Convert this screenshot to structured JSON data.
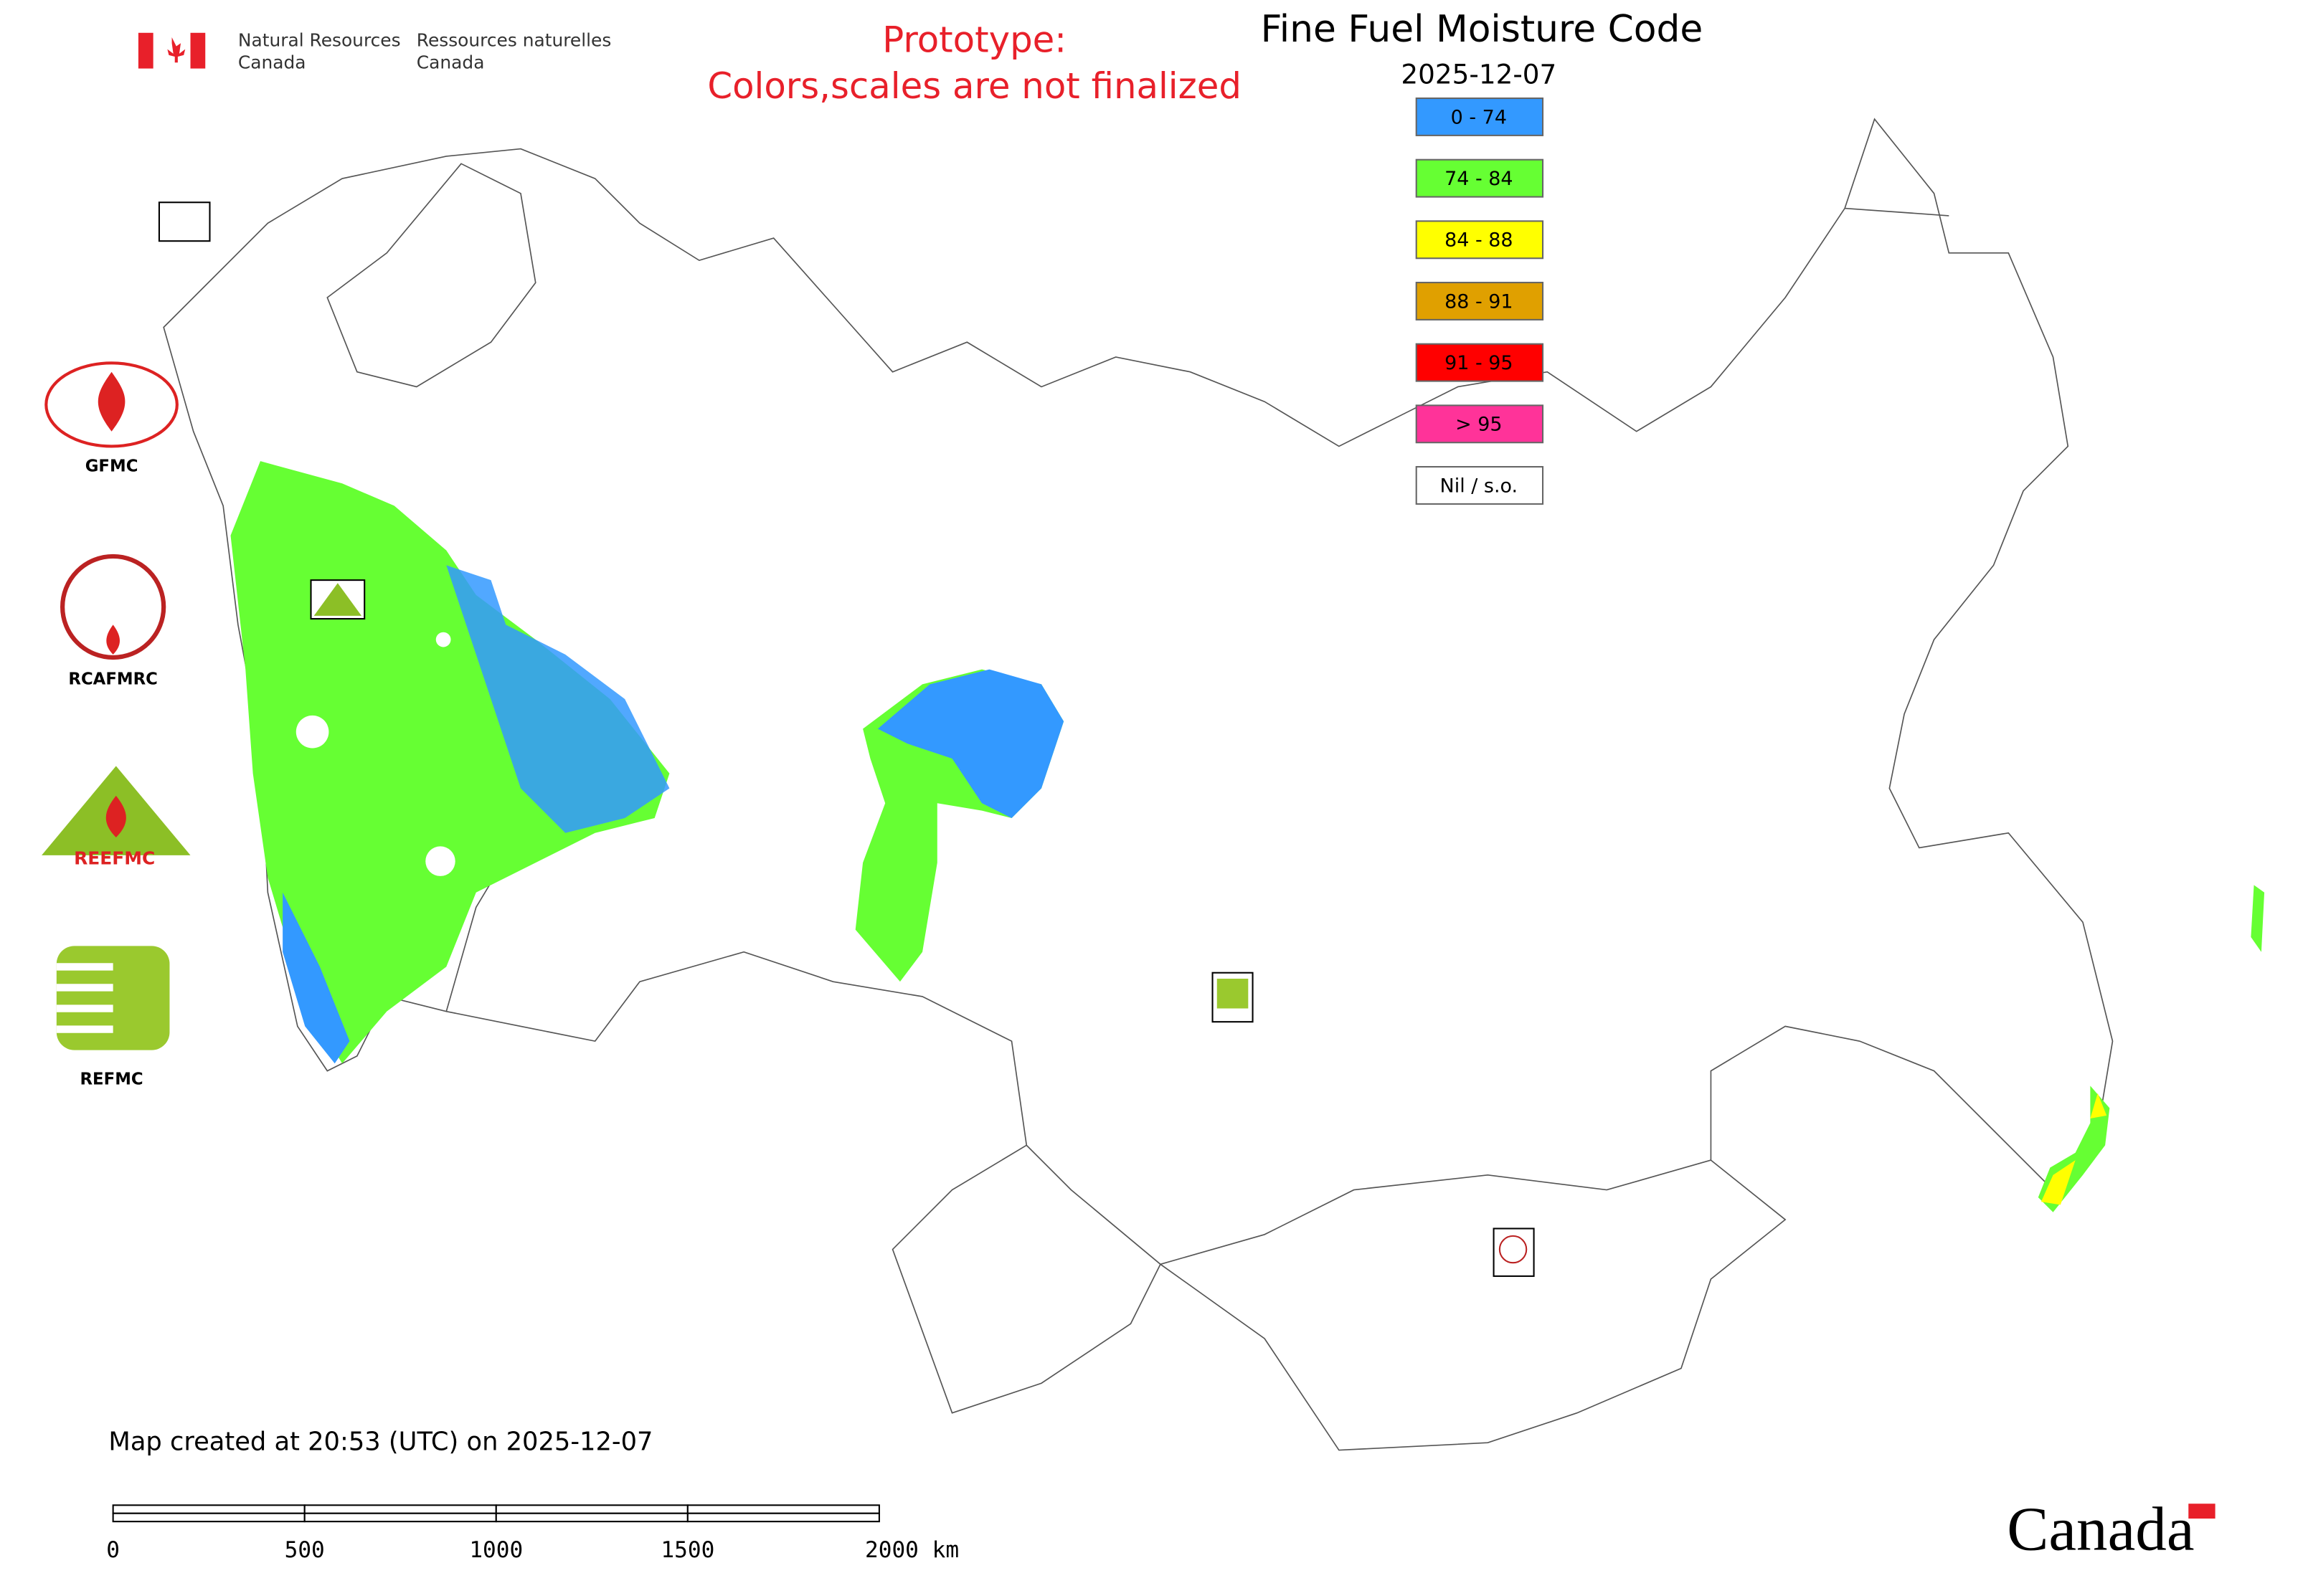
{
  "header": {
    "department_en": [
      "Natural Resources",
      "Canada"
    ],
    "department_fr": [
      "Ressources naturelles",
      "Canada"
    ],
    "prototype": [
      "Prototype:",
      "Colors,scales are not finalized"
    ],
    "title": "Fine Fuel Moisture Code",
    "date": "2025-12-07"
  },
  "legend": [
    {
      "label": "0 - 74",
      "color": "#3399ff"
    },
    {
      "label": "74 - 84",
      "color": "#66ff33"
    },
    {
      "label": "84 - 88",
      "color": "#ffff00"
    },
    {
      "label": "88 - 91",
      "color": "#e0a000"
    },
    {
      "label": "91 - 95",
      "color": "#ff0000"
    },
    {
      "label": "> 95",
      "color": "#ff3399"
    },
    {
      "label": "Nil / s.o.",
      "color": "#ffffff"
    }
  ],
  "logos": [
    "GFMC",
    "RCAFMRC",
    "REEFMC",
    "REFMC"
  ],
  "footer": {
    "created": "Map created at 20:53 (UTC) on 2025-12-07",
    "scale_labels": [
      "0",
      "500",
      "1000",
      "1500",
      "2000 km"
    ],
    "wordmark": "Canada"
  }
}
